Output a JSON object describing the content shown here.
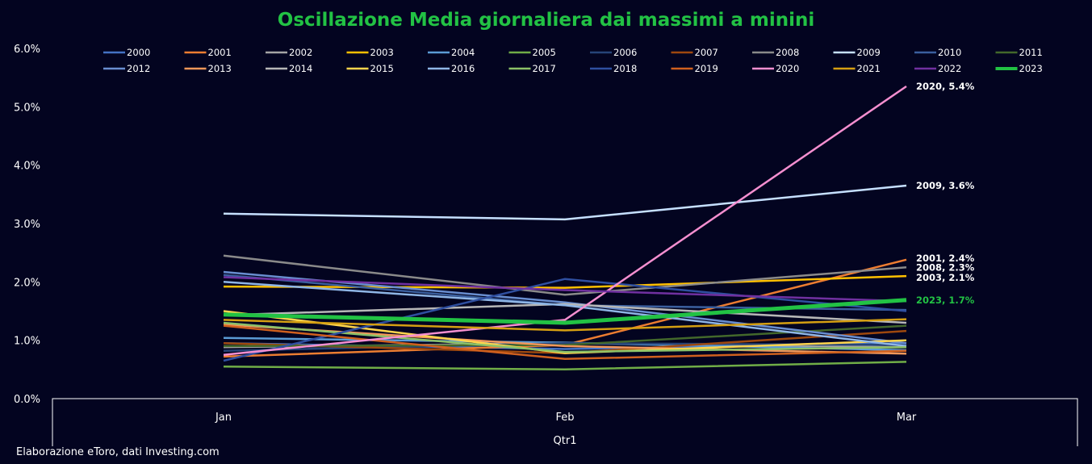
{
  "title": "Oscillazione Media giornaliera dai massimi a minini",
  "source": "Elaborazione eToro, dati Investing.com",
  "chart_data": {
    "type": "line",
    "categories": [
      "Jan",
      "Feb",
      "Mar"
    ],
    "group_label": "Qtr1",
    "ylim": [
      0,
      6.0
    ],
    "yticks": [
      "0.0%",
      "1.0%",
      "2.0%",
      "3.0%",
      "4.0%",
      "5.0%",
      "6.0%"
    ],
    "legend_position": "top",
    "series": [
      {
        "name": "2000",
        "color": "#4472c4",
        "values": [
          0.95,
          0.85,
          0.95
        ]
      },
      {
        "name": "2001",
        "color": "#ed7d31",
        "values": [
          0.72,
          0.92,
          2.38
        ]
      },
      {
        "name": "2002",
        "color": "#a5a5a5",
        "values": [
          0.88,
          0.95,
          0.88
        ]
      },
      {
        "name": "2003",
        "color": "#ffc000",
        "values": [
          1.92,
          1.9,
          2.1
        ]
      },
      {
        "name": "2004",
        "color": "#5b9bd5",
        "values": [
          1.04,
          0.96,
          0.83
        ]
      },
      {
        "name": "2005",
        "color": "#70ad47",
        "values": [
          0.55,
          0.5,
          0.63
        ]
      },
      {
        "name": "2006",
        "color": "#264478",
        "values": [
          0.82,
          0.95,
          0.92
        ]
      },
      {
        "name": "2007",
        "color": "#9e480e",
        "values": [
          0.95,
          0.78,
          1.16
        ]
      },
      {
        "name": "2008",
        "color": "#8a8a8a",
        "values": [
          2.45,
          1.78,
          2.25
        ]
      },
      {
        "name": "2009",
        "color": "#c6e0ff",
        "values": [
          3.17,
          3.07,
          3.65
        ]
      },
      {
        "name": "2010",
        "color": "#3b5f9e",
        "values": [
          2.12,
          1.6,
          1.52
        ]
      },
      {
        "name": "2011",
        "color": "#43682b",
        "values": [
          0.9,
          0.92,
          1.25
        ]
      },
      {
        "name": "2012",
        "color": "#698ed0",
        "values": [
          2.17,
          1.65,
          0.95
        ]
      },
      {
        "name": "2013",
        "color": "#f1975a",
        "values": [
          1.27,
          0.9,
          0.77
        ]
      },
      {
        "name": "2014",
        "color": "#b7b7b7",
        "values": [
          1.43,
          1.62,
          1.3
        ]
      },
      {
        "name": "2015",
        "color": "#ffd54d",
        "values": [
          1.5,
          0.78,
          1.0
        ]
      },
      {
        "name": "2016",
        "color": "#8fb6e6",
        "values": [
          2.0,
          1.6,
          0.9
        ]
      },
      {
        "name": "2017",
        "color": "#8cc168",
        "values": [
          1.3,
          0.8,
          0.88
        ]
      },
      {
        "name": "2018",
        "color": "#2f4fa0",
        "values": [
          0.65,
          2.05,
          1.5
        ]
      },
      {
        "name": "2019",
        "color": "#d0601e",
        "values": [
          1.25,
          0.68,
          0.82
        ]
      },
      {
        "name": "2020",
        "color": "#f58fd0",
        "values": [
          0.75,
          1.35,
          5.35
        ]
      },
      {
        "name": "2021",
        "color": "#d59f12",
        "values": [
          1.35,
          1.17,
          1.36
        ]
      },
      {
        "name": "2022",
        "color": "#7030a0",
        "values": [
          2.08,
          1.86,
          1.67
        ]
      },
      {
        "name": "2023",
        "color": "#22c244",
        "values": [
          1.44,
          1.3,
          1.69
        ]
      }
    ],
    "annotations": [
      {
        "text": "2020, 5.4%",
        "series": "2020"
      },
      {
        "text": "2009, 3.6%",
        "series": "2009"
      },
      {
        "text": "2001, 2.4%",
        "series": "2001"
      },
      {
        "text": "2008, 2.3%",
        "series": "2008"
      },
      {
        "text": "2003, 2.1%",
        "series": "2003"
      },
      {
        "text": "2023, 1.7%",
        "series": "2023"
      }
    ]
  }
}
